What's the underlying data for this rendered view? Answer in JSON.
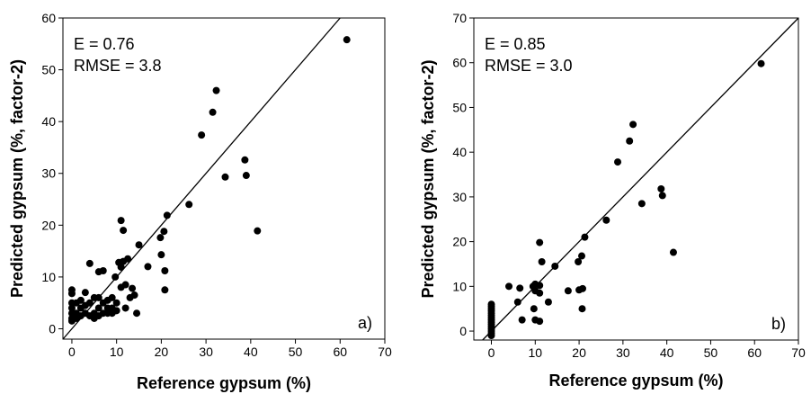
{
  "chart_data": [
    {
      "type": "scatter",
      "color": "#000000",
      "xlabel": "Reference gypsum (%)",
      "ylabel": "Predicted gypsum (%, factor-2)",
      "annotations": [
        "E = 0.76",
        "RMSE = 3.8",
        "a)"
      ],
      "xlim": [
        -2,
        70
      ],
      "ylim": [
        -2,
        60
      ],
      "xticks": [
        0,
        10,
        20,
        30,
        40,
        50,
        60,
        70
      ],
      "yticks": [
        0,
        10,
        20,
        30,
        40,
        50,
        60
      ],
      "x": [
        61.5,
        32.3,
        31.5,
        29,
        38.7,
        39,
        34.3,
        41.5,
        26.2,
        21.3,
        11,
        20.6,
        11.5,
        19.8,
        15,
        20,
        10.5,
        11.5,
        12.5,
        17,
        4,
        11,
        20.8,
        20.8,
        13.5,
        14,
        6,
        7,
        9.7,
        14.5,
        0,
        0,
        0,
        0,
        0,
        0,
        0,
        1,
        1,
        2,
        2,
        3,
        3,
        4,
        4,
        5,
        5,
        6,
        6,
        7,
        7,
        8,
        8,
        9,
        9,
        10,
        10,
        11,
        12,
        12,
        13,
        2,
        1,
        3,
        5,
        6,
        8,
        9
      ],
      "values": [
        55.8,
        46,
        41.8,
        37.4,
        32.6,
        29.6,
        29.3,
        18.9,
        24,
        21.9,
        20.9,
        18.8,
        19,
        17.6,
        16.2,
        14.3,
        12.8,
        13,
        13.5,
        12,
        12.6,
        11.9,
        11.2,
        7.5,
        7.8,
        6.5,
        11,
        11.2,
        10,
        3,
        7.5,
        6.8,
        5,
        4,
        3,
        2,
        1.5,
        3,
        5,
        2.5,
        4,
        3,
        7,
        2.5,
        5,
        3,
        6,
        2.5,
        4,
        3,
        5,
        3,
        4,
        4,
        6,
        5,
        3.5,
        8,
        8.5,
        4,
        6,
        5.5,
        2,
        4.5,
        2,
        6,
        5.5,
        3
      ]
    },
    {
      "type": "scatter",
      "color": "#000000",
      "xlabel": "Reference gypsum (%)",
      "ylabel": "Predicted gypsum (%, factor-2)",
      "annotations": [
        "E = 0.85",
        "RMSE = 3.0",
        "b)"
      ],
      "xlim": [
        -4,
        70
      ],
      "ylim": [
        -2,
        70
      ],
      "xticks": [
        0,
        10,
        20,
        30,
        40,
        50,
        60,
        70
      ],
      "yticks": [
        0,
        10,
        20,
        30,
        40,
        50,
        60,
        70
      ],
      "x": [
        61.5,
        32.3,
        31.5,
        28.8,
        38.7,
        39,
        34.3,
        41.5,
        26.2,
        21.3,
        11,
        20.6,
        11.5,
        19.8,
        14.5,
        17.5,
        20,
        20.8,
        20.7,
        10,
        9.5,
        11,
        10,
        11,
        4,
        6.5,
        6,
        7,
        10,
        11,
        9.7,
        13,
        0,
        0,
        0,
        0,
        0,
        0,
        0,
        0,
        0,
        0,
        0,
        0,
        0,
        0,
        0
      ],
      "values": [
        59.8,
        46.2,
        42.5,
        37.8,
        31.8,
        30.3,
        28.5,
        17.6,
        24.8,
        21,
        19.8,
        16.8,
        15.5,
        15.5,
        14.5,
        9,
        9.2,
        9.5,
        5,
        10.5,
        10,
        10.2,
        9,
        8.5,
        10,
        9.6,
        6.5,
        2.5,
        2.5,
        2.2,
        5,
        6.5,
        6,
        5,
        4,
        3,
        2,
        1,
        0,
        -0.5,
        -1,
        4.5,
        2.5,
        1.5,
        0.5,
        3.5,
        5.5
      ]
    }
  ]
}
